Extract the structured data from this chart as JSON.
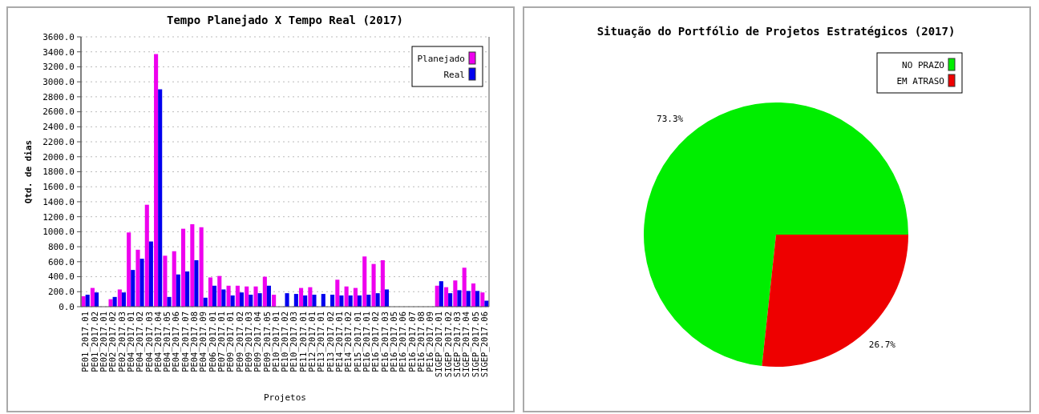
{
  "chart_data": [
    {
      "type": "bar",
      "title": "Tempo Planejado X Tempo Real (2017)",
      "xlabel": "Projetos",
      "ylabel": "Qtd. de dias",
      "categories": [
        "PE01_2017.01",
        "PE01_2017.02",
        "PE02_2017.01",
        "PE02_2017.02",
        "PE02_2017.03",
        "PE04_2017.01",
        "PE04_2017.02",
        "PE04_2017.03",
        "PE04_2017.04",
        "PE04_2017.05",
        "PE04_2017.06",
        "PE04_2017.07",
        "PE04_2017.08",
        "PE04_2017.09",
        "PE06_2017.01",
        "PE07_2017.01",
        "PE09_2017.01",
        "PE09_2017.02",
        "PE09_2017.03",
        "PE09_2017.04",
        "PE09_2017.05",
        "PE10_2017.01",
        "PE10_2017.02",
        "PE10_2017.03",
        "PE11_2017.01",
        "PE12_2017.01",
        "PE13_2017.01",
        "PE13_2017.02",
        "PE14_2017.01",
        "PE14_2017.02",
        "PE15_2017.01",
        "PE16_2017.01",
        "PE16_2017.02",
        "PE16_2017.03",
        "PE16_2017.05",
        "PE16_2017.06",
        "PE16_2017.07",
        "PE16_2017.08",
        "PE16_2017.09",
        "SIGEP_2017.01",
        "SIGEP_2017.02",
        "SIGEP_2017.03",
        "SIGEP_2017.04",
        "SIGEP_2017.05",
        "SIGEP_2017.06"
      ],
      "series": [
        {
          "name": "Planejado",
          "color": "#ee00ee",
          "values": [
            140,
            250,
            0,
            100,
            230,
            990,
            760,
            1360,
            3370,
            680,
            740,
            1040,
            1100,
            1060,
            390,
            410,
            280,
            280,
            270,
            270,
            400,
            160,
            0,
            0,
            250,
            260,
            0,
            0,
            360,
            270,
            250,
            670,
            570,
            620,
            0,
            0,
            0,
            0,
            0,
            280,
            260,
            350,
            520,
            310,
            190
          ]
        },
        {
          "name": "Real",
          "color": "#0000ee",
          "values": [
            160,
            190,
            0,
            130,
            190,
            490,
            640,
            870,
            2900,
            130,
            430,
            470,
            620,
            120,
            280,
            230,
            150,
            190,
            160,
            180,
            280,
            0,
            180,
            170,
            150,
            160,
            170,
            160,
            150,
            150,
            150,
            160,
            180,
            230,
            0,
            0,
            0,
            0,
            0,
            340,
            180,
            220,
            210,
            210,
            80
          ]
        }
      ],
      "ylim": [
        0,
        3600
      ],
      "yticks": [
        {
          "value": 0,
          "label": "0.0"
        },
        {
          "value": 200,
          "label": "200.0"
        },
        {
          "value": 400,
          "label": "400.0"
        },
        {
          "value": 600,
          "label": "600.0"
        },
        {
          "value": 800,
          "label": "800.0"
        },
        {
          "value": 1000,
          "label": "1000.0"
        },
        {
          "value": 1200,
          "label": "1200.0"
        },
        {
          "value": 1400,
          "label": "1400.0"
        },
        {
          "value": 1600,
          "label": "1600.0"
        },
        {
          "value": 1800,
          "label": "1800.0"
        },
        {
          "value": 2000,
          "label": "2000.0"
        },
        {
          "value": 2200,
          "label": "2200.0"
        },
        {
          "value": 2400,
          "label": "2400.0"
        },
        {
          "value": 2600,
          "label": "2600.0"
        },
        {
          "value": 2800,
          "label": "2800.0"
        },
        {
          "value": 3000,
          "label": "3000.0"
        },
        {
          "value": 3200,
          "label": "3200.0"
        },
        {
          "value": 3400,
          "label": "3400.0"
        },
        {
          "value": 3600,
          "label": "3600.0"
        }
      ],
      "grid": "y",
      "legend": "top right"
    },
    {
      "type": "pie",
      "title": "Situação do Portfólio de Projetos Estratégicos (2017)",
      "categories": [
        "NO PRAZO",
        "EM ATRASO"
      ],
      "values": [
        73.3,
        26.7
      ],
      "colors": [
        "#00ee00",
        "#ee0000"
      ],
      "value_labels": [
        "73.3%",
        "26.7%"
      ],
      "legend": "top right"
    }
  ]
}
